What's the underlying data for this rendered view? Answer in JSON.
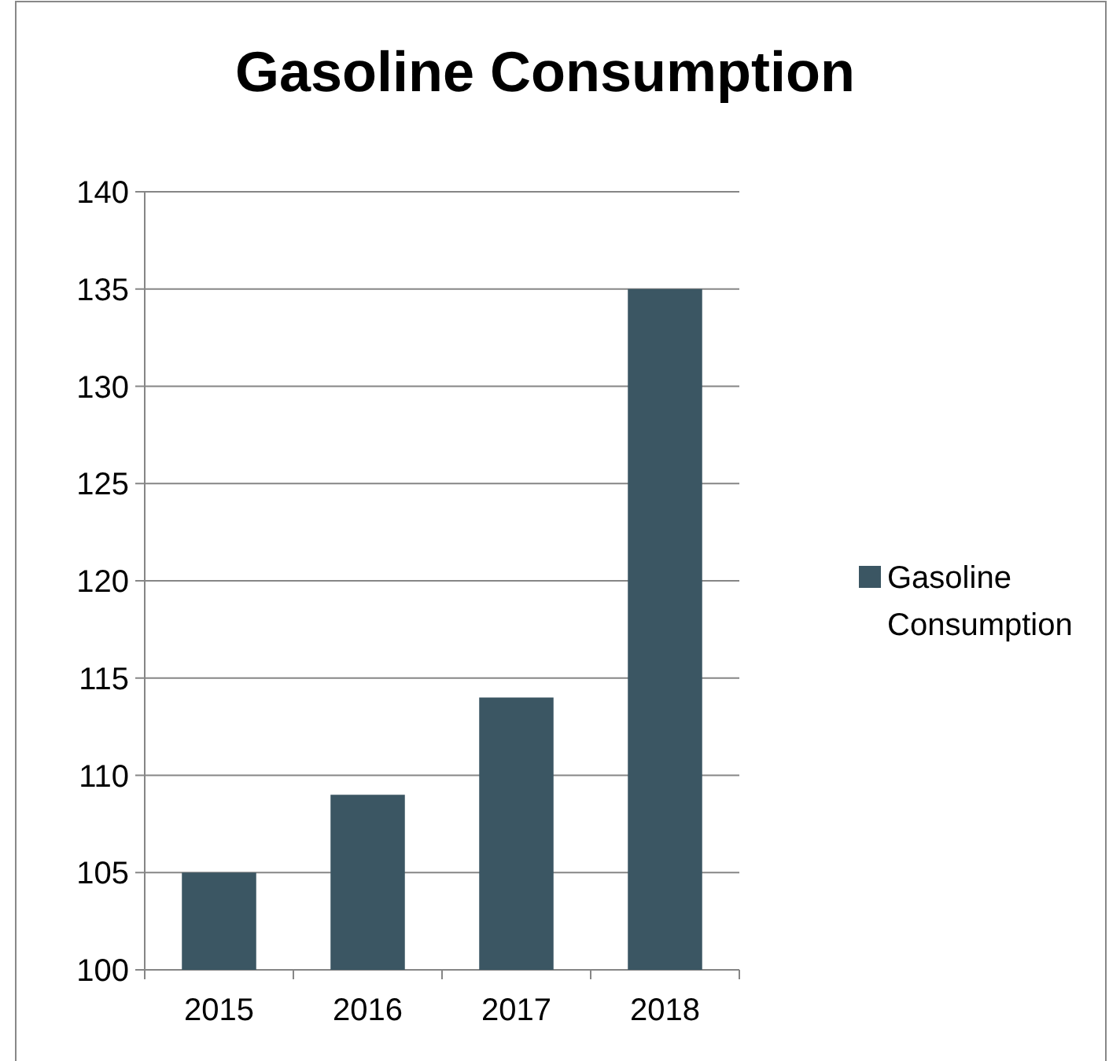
{
  "chart_data": {
    "type": "bar",
    "title": "Gasoline Consumption",
    "categories": [
      "2015",
      "2016",
      "2017",
      "2018"
    ],
    "series": [
      {
        "name": "Gasoline Consumption",
        "color": "#3b5663",
        "values": [
          105,
          109,
          114,
          135
        ]
      }
    ],
    "ylim": [
      100,
      140
    ],
    "yticks": [
      100,
      105,
      110,
      115,
      120,
      125,
      130,
      135,
      140
    ],
    "grid": "y",
    "legend": "right"
  }
}
